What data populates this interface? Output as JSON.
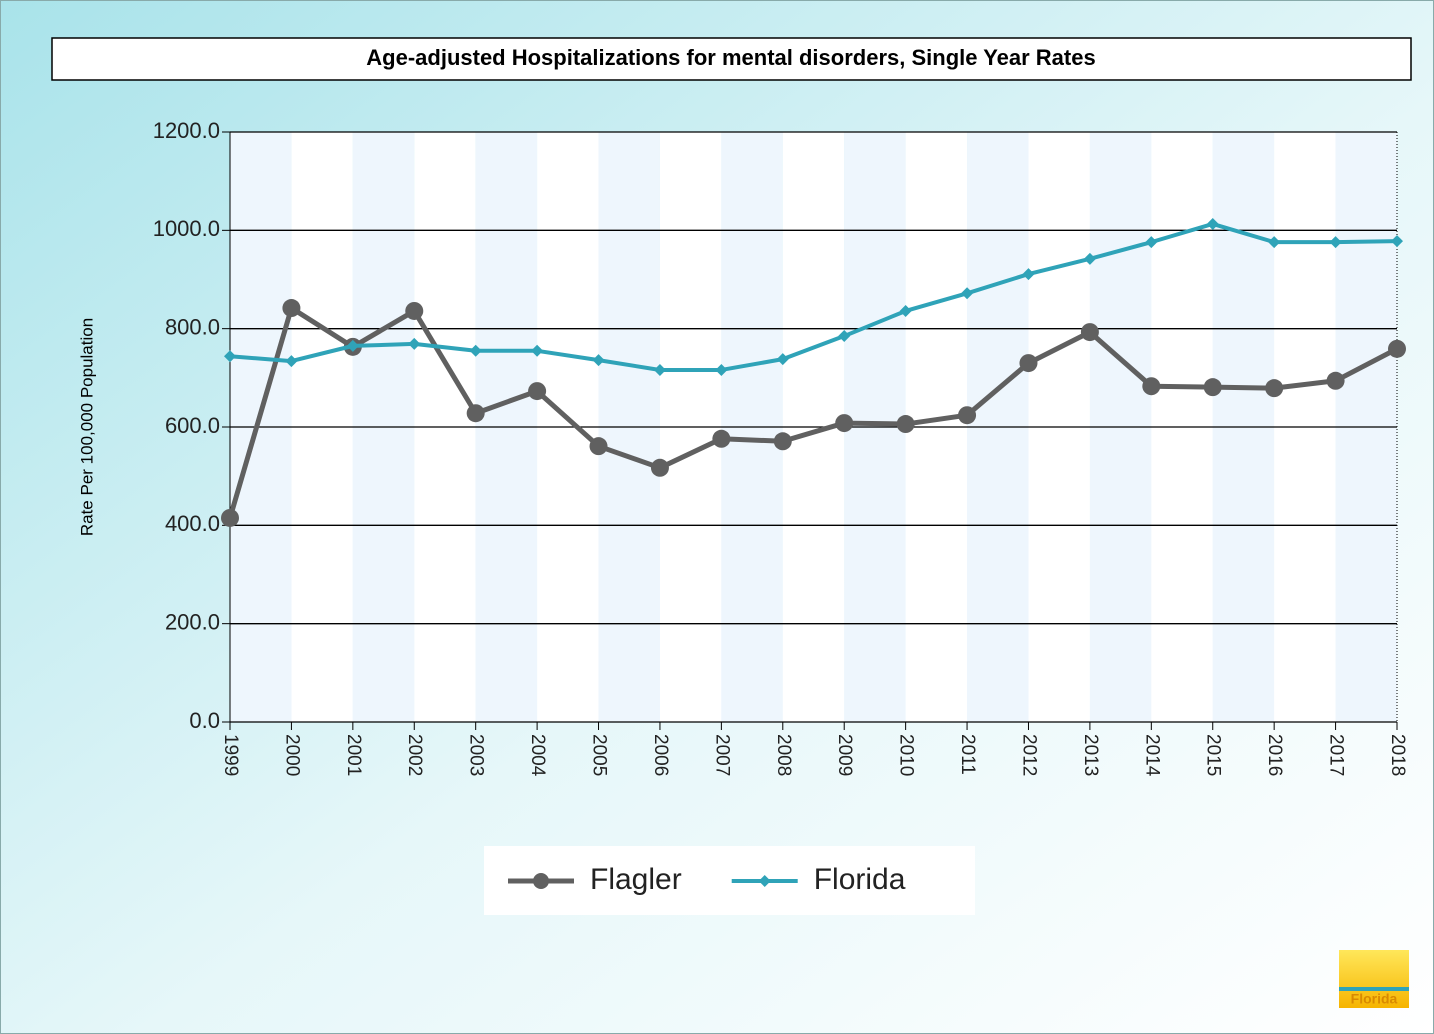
{
  "chart_data": {
    "type": "line",
    "title": "Age-adjusted Hospitalizations for mental disorders, Single Year Rates",
    "y_label": "Rate Per 100,000 Population",
    "categories": [
      "1999",
      "2000",
      "2001",
      "2002",
      "2003",
      "2004",
      "2005",
      "2006",
      "2007",
      "2008",
      "2009",
      "2010",
      "2011",
      "2012",
      "2013",
      "2014",
      "2015",
      "2016",
      "2017",
      "2018"
    ],
    "series": [
      {
        "name": "Flagler",
        "color": "#606060",
        "marker": "circle",
        "values": [
          415,
          842,
          763,
          836,
          628,
          673,
          561,
          517,
          576,
          571,
          608,
          606,
          624,
          730,
          793,
          683,
          681,
          679,
          694,
          759
        ]
      },
      {
        "name": "Florida",
        "color": "#2fa3b8",
        "marker": "diamond",
        "values": [
          744,
          734,
          765,
          769,
          755,
          755,
          736,
          716,
          716,
          738,
          785,
          836,
          872,
          911,
          942,
          976,
          1013,
          976,
          976,
          978
        ]
      }
    ],
    "ylim": [
      0,
      1200
    ],
    "yticks": [
      {
        "value": 0,
        "label": "0.0"
      },
      {
        "value": 200,
        "label": "200.0"
      },
      {
        "value": 400,
        "label": "400.0"
      },
      {
        "value": 600,
        "label": "600.0"
      },
      {
        "value": 800,
        "label": "800.0"
      },
      {
        "value": 1000,
        "label": "1000.0"
      },
      {
        "value": 1200,
        "label": "1200.0"
      }
    ],
    "grid": true,
    "legend": "bottom",
    "logo_text": "Florida"
  }
}
